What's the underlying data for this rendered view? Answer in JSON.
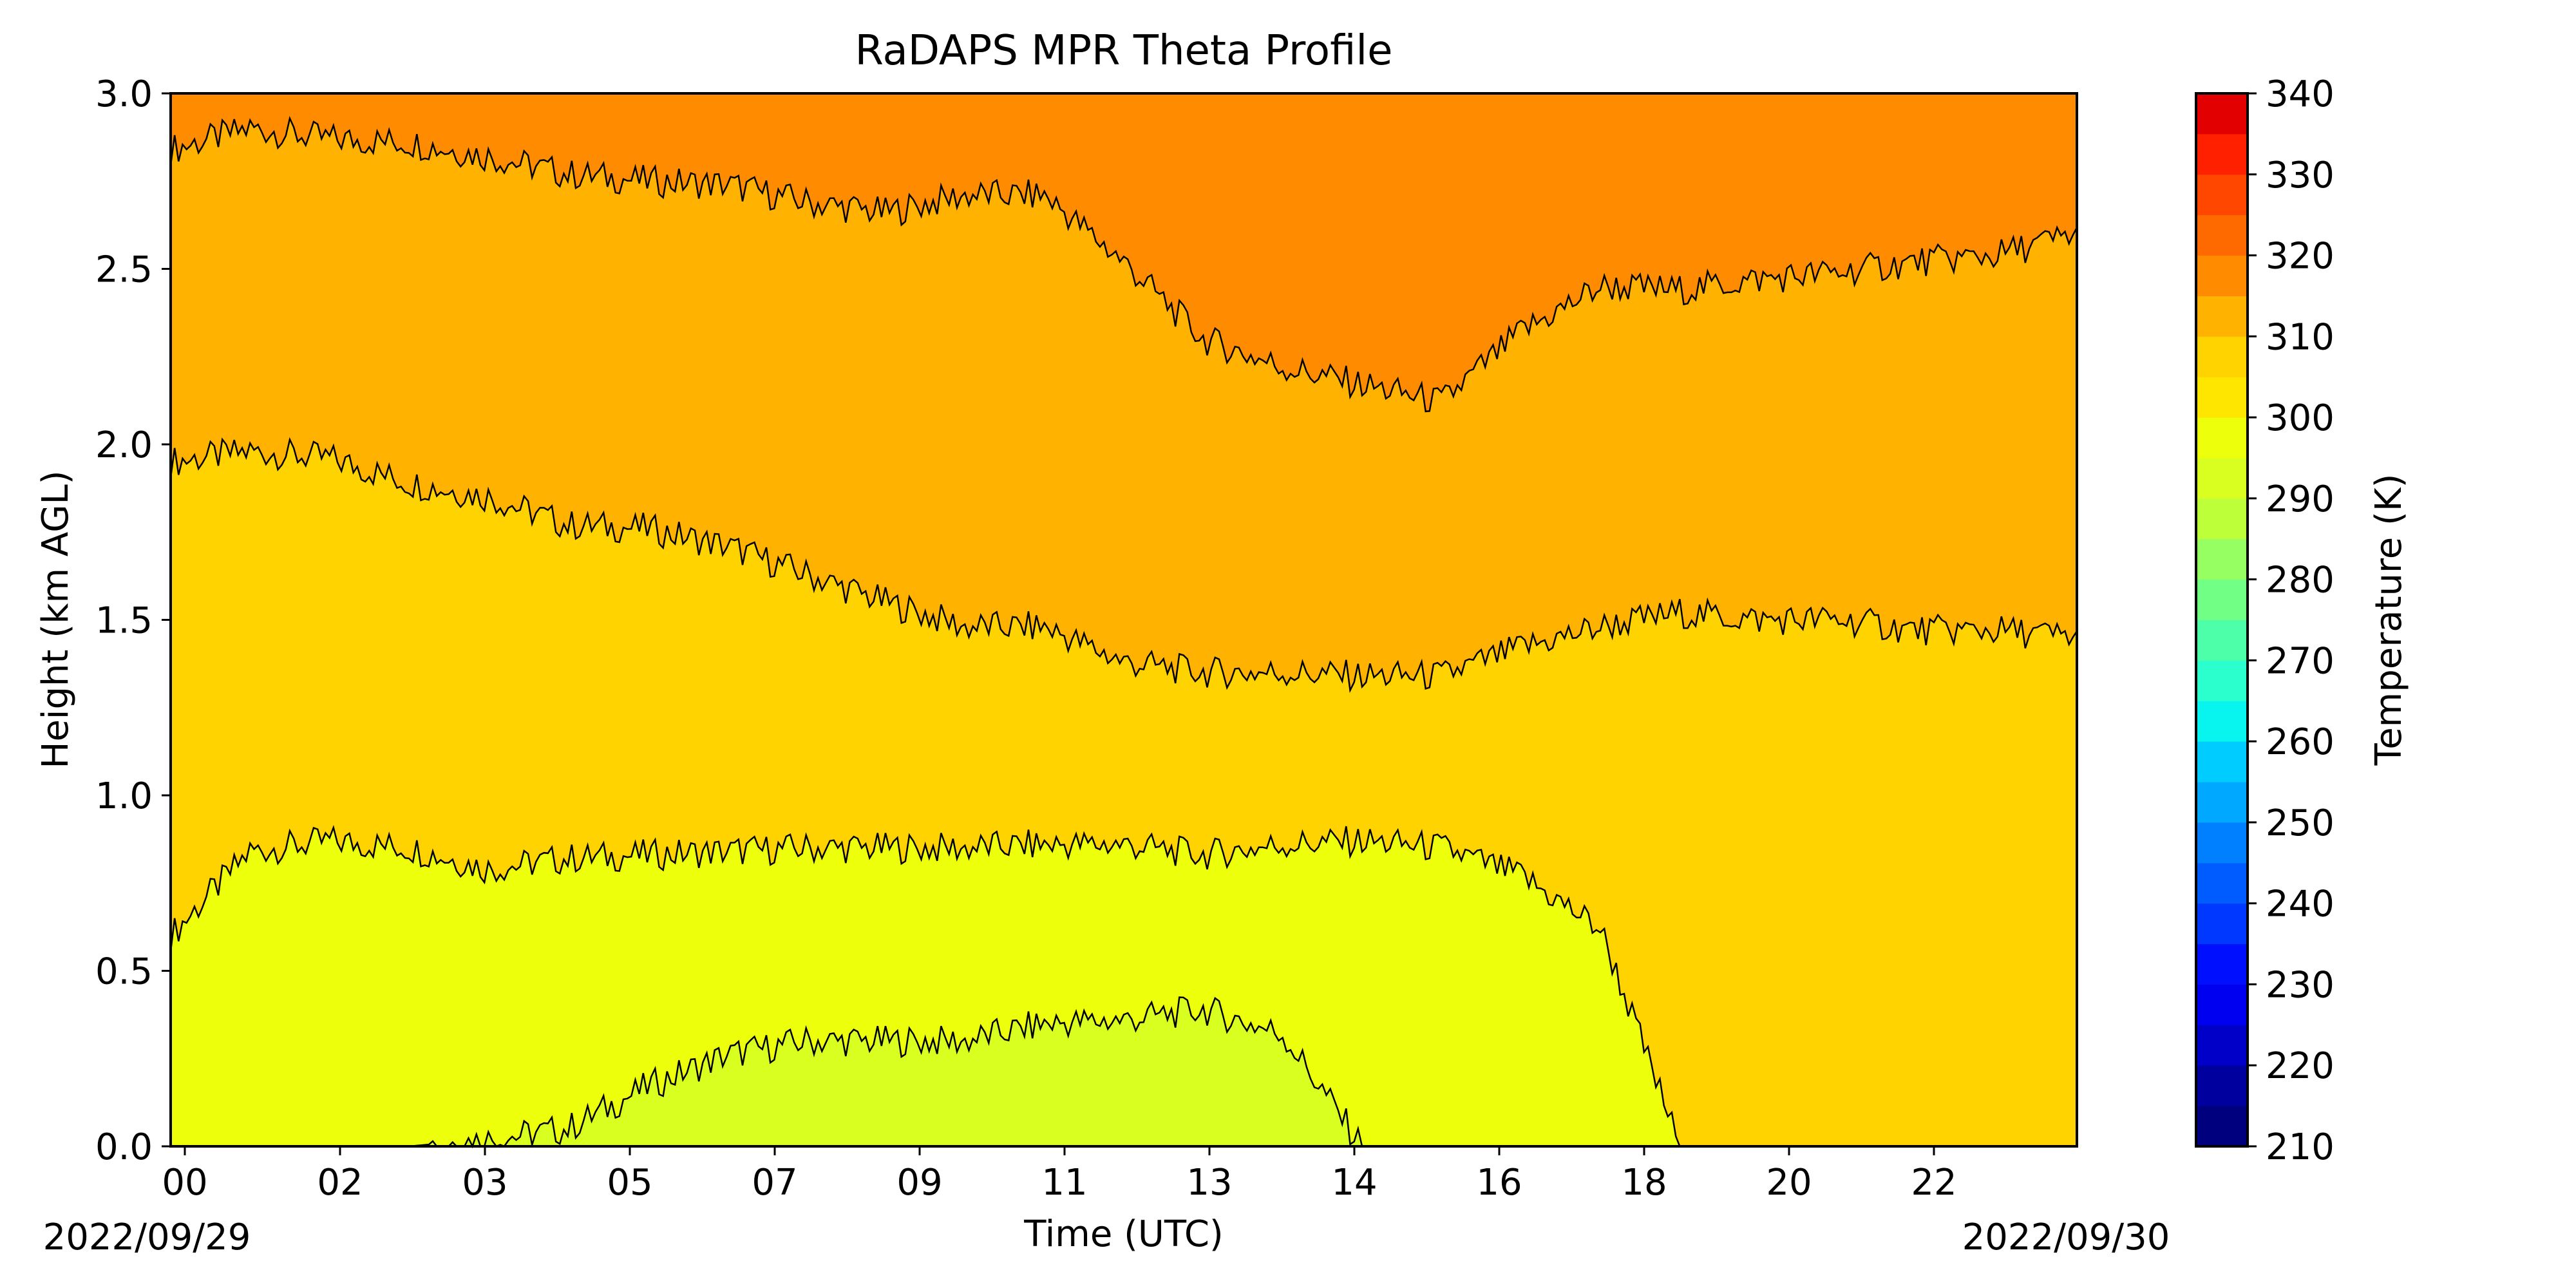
{
  "chart_data": {
    "type": "contour",
    "title": "RaDAPS MPR Theta Profile",
    "xlabel": "Time (UTC)",
    "ylabel": "Height (km AGL)",
    "ylim": [
      0,
      3.0
    ],
    "x_tick_labels": [
      "00",
      "02",
      "03",
      "05",
      "07",
      "09",
      "11",
      "13",
      "14",
      "16",
      "18",
      "20",
      "22"
    ],
    "y_tick_labels": [
      "0.0",
      "0.5",
      "1.0",
      "1.5",
      "2.0",
      "2.5",
      "3.0"
    ],
    "date_start_label": "2022/09/29",
    "date_end_label": "2022/09/30",
    "colorbar": {
      "label": "Temperature (K)",
      "min": 210,
      "max": 340,
      "step": 5,
      "tick_labels": [
        "210",
        "220",
        "230",
        "240",
        "250",
        "260",
        "270",
        "280",
        "290",
        "300",
        "310",
        "320",
        "330",
        "340"
      ],
      "colors": [
        "#00007f",
        "#00009f",
        "#0000c8",
        "#0000f1",
        "#0010ff",
        "#0038ff",
        "#005cff",
        "#0080ff",
        "#00a8ff",
        "#00ccff",
        "#08f4ee",
        "#2affcd",
        "#4effa9",
        "#72ff85",
        "#96ff61",
        "#bdff39",
        "#d8ff1f",
        "#edff0a",
        "#ffe600",
        "#ffd300",
        "#ffb200",
        "#ff8c00",
        "#ff6a00",
        "#ff4700",
        "#ff2000",
        "#e20000",
        "#b60000",
        "#8d0000"
      ]
    },
    "x_hours": [
      0,
      1,
      2,
      3,
      4,
      5,
      6,
      7,
      8,
      9,
      10,
      11,
      12,
      13,
      14,
      15,
      16,
      17,
      18,
      19,
      20,
      21,
      22,
      23,
      24
    ],
    "contours": [
      {
        "level": 305,
        "y_km": [
          2.84,
          2.9,
          2.87,
          2.86,
          2.82,
          2.77,
          2.75,
          2.74,
          2.69,
          2.66,
          2.71,
          2.71,
          2.52,
          2.3,
          2.22,
          2.17,
          2.12,
          2.32,
          2.45,
          2.44,
          2.47,
          2.49,
          2.52,
          2.54,
          2.6
        ]
      },
      {
        "level": 300,
        "y_km": [
          1.95,
          1.98,
          1.96,
          1.89,
          1.85,
          1.77,
          1.76,
          1.71,
          1.63,
          1.55,
          1.48,
          1.48,
          1.38,
          1.35,
          1.35,
          1.34,
          1.34,
          1.42,
          1.48,
          1.52,
          1.5,
          1.5,
          1.47,
          1.47,
          1.45
        ]
      },
      {
        "level": 295,
        "y_km": [
          0.6,
          0.84,
          0.87,
          0.85,
          0.79,
          0.82,
          0.83,
          0.84,
          0.85,
          0.85,
          0.85,
          0.86,
          0.86,
          0.83,
          0.86,
          0.87,
          0.85,
          0.77,
          0.62,
          0.0,
          0.0,
          0.0,
          0.0,
          0.0,
          0.0
        ]
      },
      {
        "level": 290,
        "y_km": [
          0.0,
          0.0,
          0.0,
          0.0,
          0.02,
          0.05,
          0.17,
          0.26,
          0.3,
          0.3,
          0.3,
          0.35,
          0.36,
          0.39,
          0.32,
          0.0,
          0.0,
          0.0,
          0.0,
          0.0,
          0.0,
          0.0,
          0.0,
          0.0,
          0.0
        ]
      }
    ]
  }
}
